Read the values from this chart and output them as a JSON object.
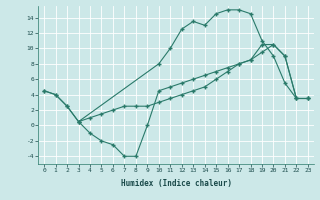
{
  "xlabel": "Humidex (Indice chaleur)",
  "background_color": "#cce8e8",
  "grid_color": "#ffffff",
  "line_color": "#2a7a6a",
  "xlim": [
    -0.5,
    23.5
  ],
  "ylim": [
    -5,
    15.5
  ],
  "yticks": [
    -4,
    -2,
    0,
    2,
    4,
    6,
    8,
    10,
    12,
    14
  ],
  "xticks": [
    0,
    1,
    2,
    3,
    4,
    5,
    6,
    7,
    8,
    9,
    10,
    11,
    12,
    13,
    14,
    15,
    16,
    17,
    18,
    19,
    20,
    21,
    22,
    23
  ],
  "line1_x": [
    0,
    1,
    2,
    3,
    10,
    11,
    12,
    13,
    14,
    15,
    16,
    17,
    18,
    19,
    20,
    21,
    22,
    23
  ],
  "line1_y": [
    4.5,
    4.0,
    2.5,
    0.5,
    8.0,
    10.0,
    12.5,
    13.5,
    13.0,
    14.5,
    15.0,
    15.0,
    14.5,
    11.0,
    9.0,
    5.5,
    3.5,
    3.5
  ],
  "line2_x": [
    0,
    1,
    2,
    3,
    4,
    5,
    6,
    7,
    8,
    9,
    10,
    11,
    12,
    13,
    14,
    15,
    16,
    17,
    18,
    19,
    20,
    21,
    22,
    23
  ],
  "line2_y": [
    4.5,
    4.0,
    2.5,
    0.5,
    1.0,
    1.5,
    2.0,
    2.5,
    2.5,
    2.5,
    3.0,
    3.5,
    4.0,
    4.5,
    5.0,
    6.0,
    7.0,
    8.0,
    8.5,
    10.5,
    10.5,
    9.0,
    3.5,
    3.5
  ],
  "line3_x": [
    3,
    4,
    5,
    6,
    7,
    8,
    9,
    10,
    11,
    12,
    13,
    14,
    15,
    16,
    17,
    18,
    19,
    20,
    21,
    22,
    23
  ],
  "line3_y": [
    0.5,
    -1.0,
    -2.0,
    -2.5,
    -4.0,
    -4.0,
    0.0,
    4.5,
    5.0,
    5.5,
    6.0,
    6.5,
    7.0,
    7.5,
    8.0,
    8.5,
    9.5,
    10.5,
    9.0,
    3.5,
    3.5
  ]
}
